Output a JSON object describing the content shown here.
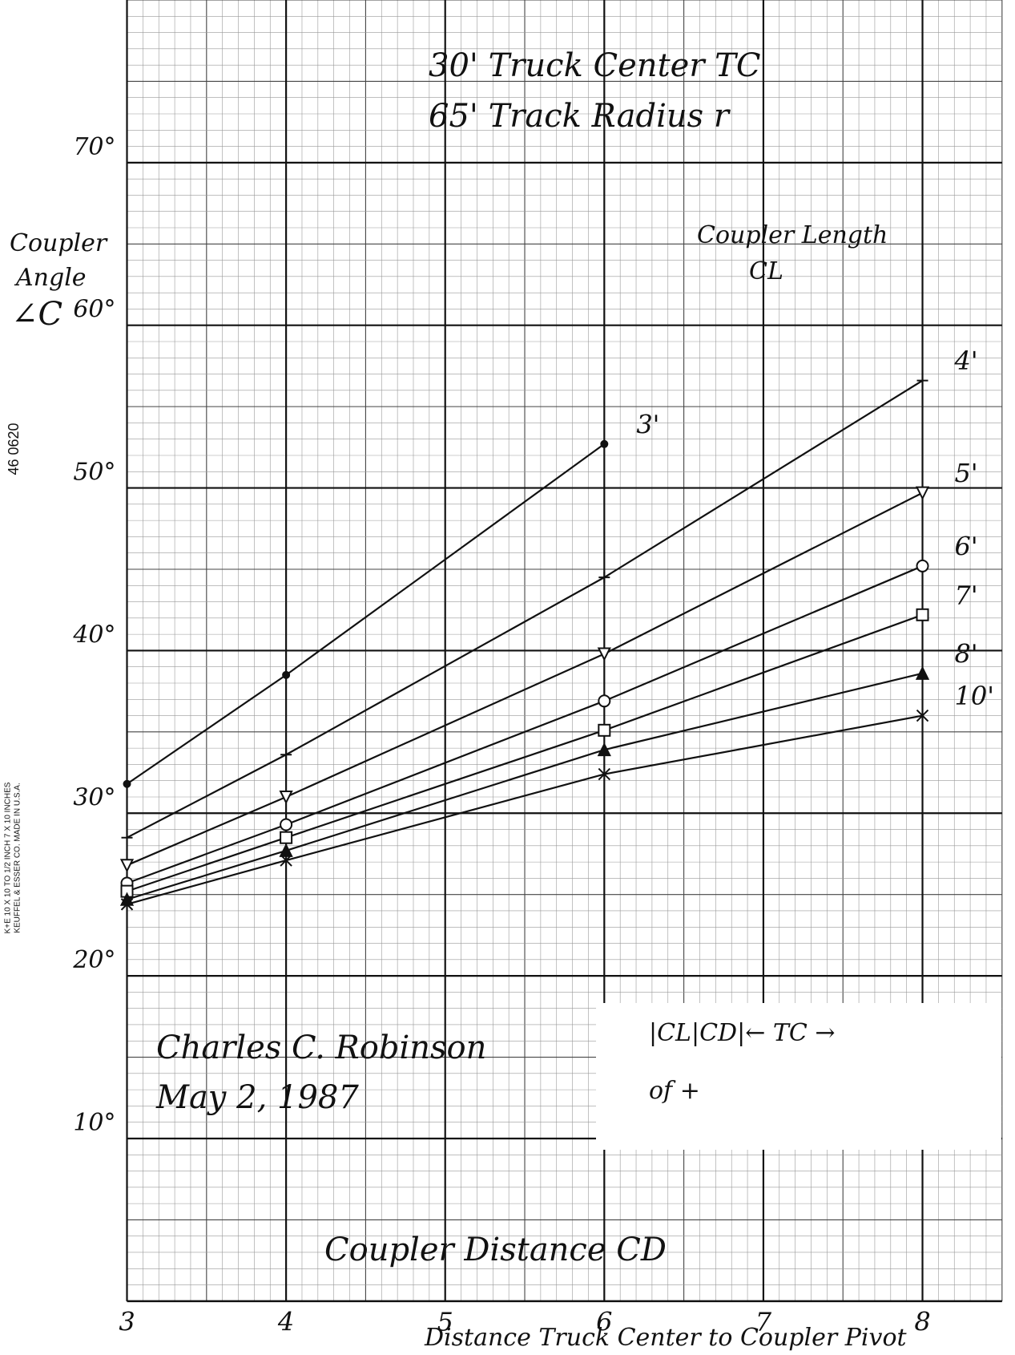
{
  "chart_data": {
    "type": "line",
    "title": "30' Truck Center TC",
    "subtitle": "65' Track Radius r",
    "y_label": [
      "Coupler",
      "Angle",
      "∠C"
    ],
    "legend_title": [
      "Coupler Length",
      "CL"
    ],
    "x_label": "Coupler Distance CD",
    "x_sublabel": "Distance Truck Center to Coupler Pivot",
    "signature": [
      "Charles C. Robinson",
      "May 2, 1987"
    ],
    "diagram_text": [
      "|CL|CD|← TC →",
      "of +"
    ],
    "paper_text": [
      "46 0620",
      "K+E 10 X 10 TO 1/2 INCH 7 X 10 INCHES",
      "KEUFFEL & ESSER CO. MADE IN U.S.A."
    ],
    "x": [
      3,
      4,
      6,
      8
    ],
    "xlim": [
      3,
      8.5
    ],
    "xticks": [
      3,
      4,
      5,
      6,
      7,
      8
    ],
    "ylim": [
      0,
      80
    ],
    "yticks": [
      {
        "value": 10,
        "label": "10°"
      },
      {
        "value": 20,
        "label": "20°"
      },
      {
        "value": 30,
        "label": "30°"
      },
      {
        "value": 40,
        "label": "40°"
      },
      {
        "value": 50,
        "label": "50°"
      },
      {
        "value": 60,
        "label": "60°"
      },
      {
        "value": 70,
        "label": "70°"
      }
    ],
    "grid": true,
    "series": [
      {
        "name": "3'",
        "color": "#111111",
        "marker": "dot",
        "values": [
          31.8,
          38.5,
          52.7,
          null
        ]
      },
      {
        "name": "4'",
        "color": "#111111",
        "marker": "plus",
        "values": [
          28.5,
          33.6,
          44.5,
          56.6
        ]
      },
      {
        "name": "5'",
        "color": "#111111",
        "marker": "triangle-down",
        "values": [
          26.8,
          31.0,
          39.8,
          49.7
        ]
      },
      {
        "name": "6'",
        "color": "#111111",
        "marker": "circle",
        "values": [
          25.7,
          29.3,
          36.9,
          45.2
        ]
      },
      {
        "name": "7'",
        "color": "#111111",
        "marker": "square",
        "values": [
          25.2,
          28.5,
          35.1,
          42.2
        ]
      },
      {
        "name": "8'",
        "color": "#111111",
        "marker": "triangle",
        "values": [
          24.7,
          27.7,
          33.9,
          38.6
        ]
      },
      {
        "name": "10'",
        "color": "#111111",
        "marker": "x",
        "values": [
          24.4,
          27.1,
          32.4,
          36.0
        ]
      }
    ]
  }
}
